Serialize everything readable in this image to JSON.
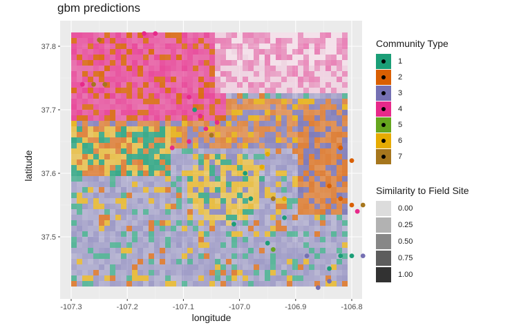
{
  "chart_data": {
    "type": "heatmap",
    "title": "gbm predictions",
    "xlabel": "longitude",
    "ylabel": "latitude",
    "xlim": [
      -107.3,
      -106.77
    ],
    "ylim": [
      37.42,
      37.82
    ],
    "x_ticks": [
      -107.3,
      -107.2,
      -107.1,
      -107.0,
      -106.9,
      -106.8
    ],
    "x_tick_labels": [
      "-107.3",
      "-107.2",
      "-107.1",
      "-107.0",
      "-106.9",
      "-106.8"
    ],
    "y_ticks": [
      37.5,
      37.6,
      37.7,
      37.8
    ],
    "y_tick_labels": [
      "37.5",
      "37.6",
      "37.7",
      "37.8"
    ],
    "community_legend": {
      "title": "Community Type",
      "entries": [
        {
          "label": "1",
          "color": "#1b9e77"
        },
        {
          "label": "2",
          "color": "#d95f02"
        },
        {
          "label": "3",
          "color": "#7570b3"
        },
        {
          "label": "4",
          "color": "#e7298a"
        },
        {
          "label": "5",
          "color": "#66a61e"
        },
        {
          "label": "6",
          "color": "#e6ab02"
        },
        {
          "label": "7",
          "color": "#a6761d"
        }
      ]
    },
    "similarity_legend": {
      "title": "Similarity to Field Site",
      "entries": [
        {
          "label": "0.00",
          "value": 0.0
        },
        {
          "label": "0.25",
          "value": 0.25
        },
        {
          "label": "0.50",
          "value": 0.5
        },
        {
          "label": "0.75",
          "value": 0.75
        },
        {
          "label": "1.00",
          "value": 1.0
        }
      ]
    },
    "field_sites": [
      {
        "x": -107.28,
        "y": 37.74,
        "type": "4"
      },
      {
        "x": -107.26,
        "y": 37.74,
        "type": "7"
      },
      {
        "x": -107.24,
        "y": 37.74,
        "type": "7"
      },
      {
        "x": -107.25,
        "y": 37.81,
        "type": "7"
      },
      {
        "x": -107.15,
        "y": 37.82,
        "type": "4"
      },
      {
        "x": -107.17,
        "y": 37.82,
        "type": "4"
      },
      {
        "x": -107.09,
        "y": 37.72,
        "type": "4"
      },
      {
        "x": -107.08,
        "y": 37.7,
        "type": "1"
      },
      {
        "x": -107.07,
        "y": 37.69,
        "type": "4"
      },
      {
        "x": -107.06,
        "y": 37.67,
        "type": "4"
      },
      {
        "x": -107.05,
        "y": 37.66,
        "type": "7"
      },
      {
        "x": -107.09,
        "y": 37.65,
        "type": "4"
      },
      {
        "x": -107.12,
        "y": 37.64,
        "type": "4"
      },
      {
        "x": -107.04,
        "y": 37.68,
        "type": "4"
      },
      {
        "x": -106.99,
        "y": 37.6,
        "type": "1"
      },
      {
        "x": -106.96,
        "y": 37.61,
        "type": "6"
      },
      {
        "x": -106.95,
        "y": 37.63,
        "type": "6"
      },
      {
        "x": -106.98,
        "y": 37.56,
        "type": "1"
      },
      {
        "x": -106.94,
        "y": 37.56,
        "type": "7"
      },
      {
        "x": -106.92,
        "y": 37.56,
        "type": "6"
      },
      {
        "x": -107.01,
        "y": 37.52,
        "type": "1"
      },
      {
        "x": -106.95,
        "y": 37.49,
        "type": "1"
      },
      {
        "x": -106.94,
        "y": 37.48,
        "type": "5"
      },
      {
        "x": -106.92,
        "y": 37.53,
        "type": "1"
      },
      {
        "x": -106.84,
        "y": 37.58,
        "type": "2"
      },
      {
        "x": -106.82,
        "y": 37.56,
        "type": "2"
      },
      {
        "x": -106.8,
        "y": 37.55,
        "type": "2"
      },
      {
        "x": -106.78,
        "y": 37.55,
        "type": "7"
      },
      {
        "x": -106.79,
        "y": 37.54,
        "type": "4"
      },
      {
        "x": -106.82,
        "y": 37.47,
        "type": "1"
      },
      {
        "x": -106.8,
        "y": 37.47,
        "type": "1"
      },
      {
        "x": -106.78,
        "y": 37.47,
        "type": "3"
      },
      {
        "x": -106.84,
        "y": 37.45,
        "type": "1"
      },
      {
        "x": -106.84,
        "y": 37.43,
        "type": "3"
      },
      {
        "x": -106.86,
        "y": 37.42,
        "type": "3"
      },
      {
        "x": -106.88,
        "y": 37.47,
        "type": "3"
      },
      {
        "x": -106.8,
        "y": 37.62,
        "type": "2"
      },
      {
        "x": -106.82,
        "y": 37.64,
        "type": "2"
      }
    ]
  }
}
